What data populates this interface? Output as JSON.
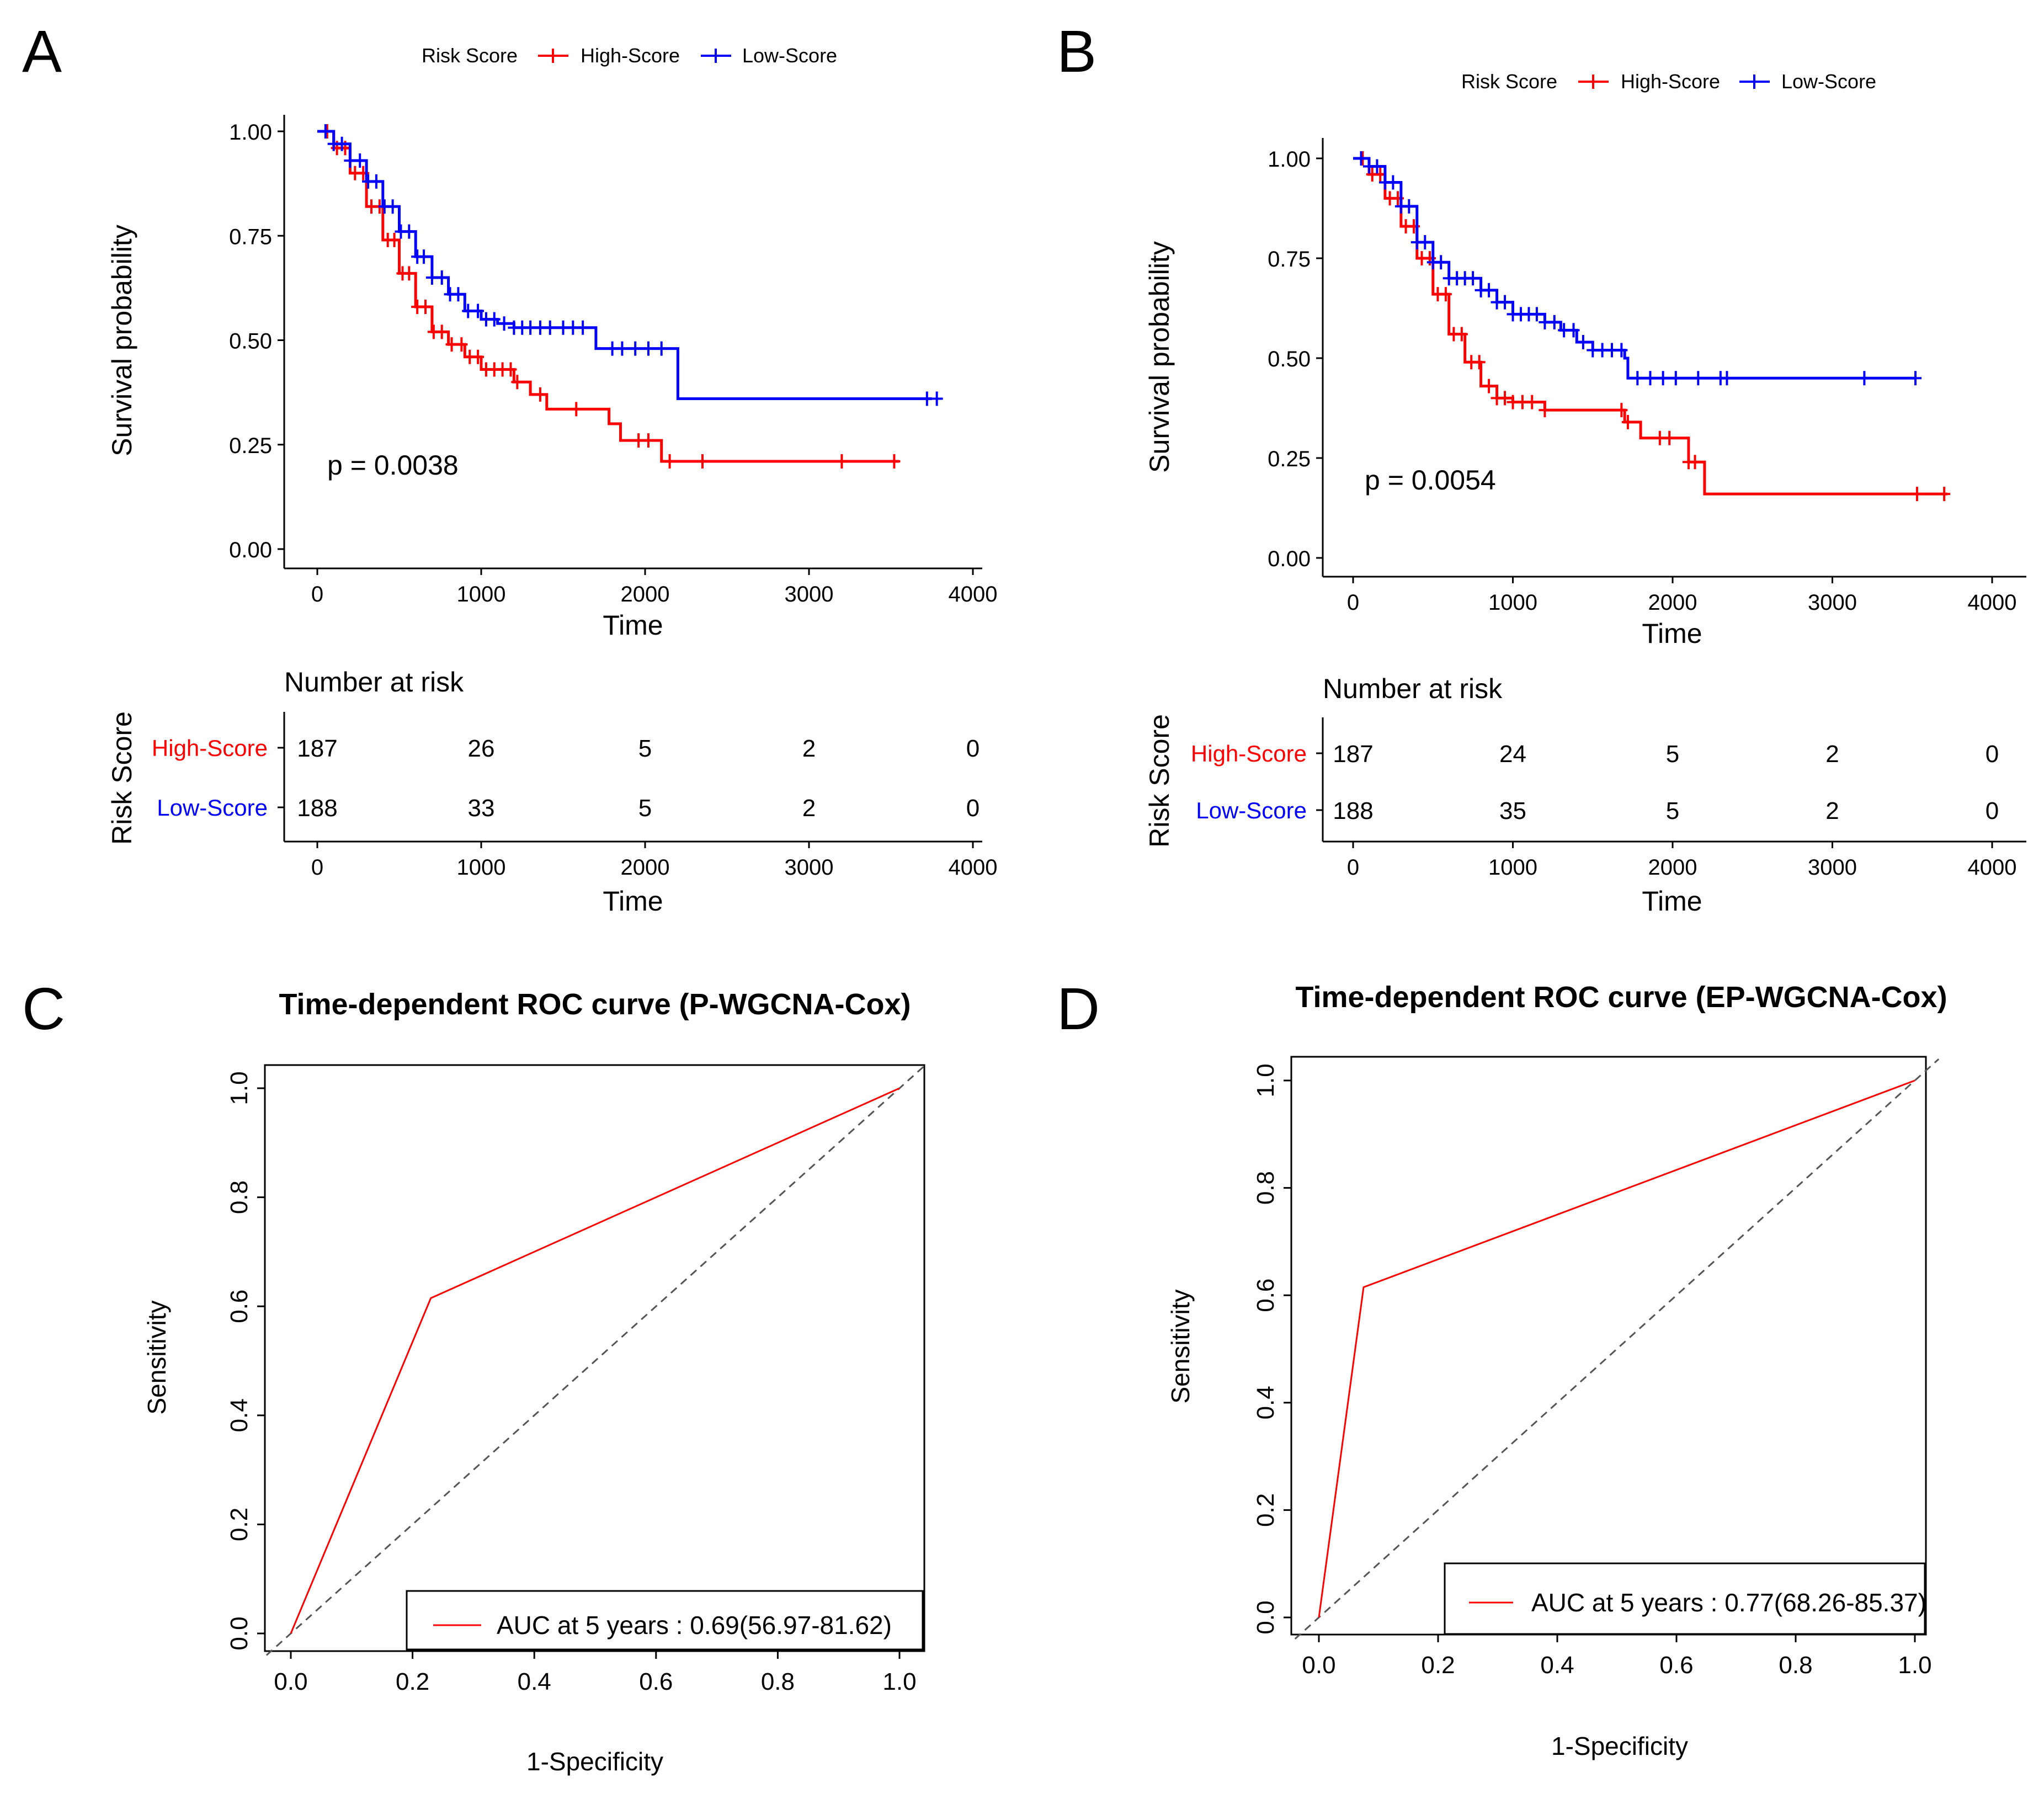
{
  "colors": {
    "high": "#ff0000",
    "low": "#0000ff",
    "roc": "#ff0000",
    "diag": "#555555",
    "axis": "#000000"
  },
  "chart_data": [
    {
      "panel": "A",
      "type": "line",
      "subtype": "kaplan-meier",
      "legend": {
        "title": "Risk Score",
        "entries": [
          "High-Score",
          "Low-Score"
        ],
        "placement": "top"
      },
      "xlabel": "Time",
      "ylabel": "Survival probability",
      "xlim": [
        0,
        4000
      ],
      "ylim": [
        0,
        1
      ],
      "x_ticks": [
        "0",
        "1000",
        "2000",
        "3000",
        "4000"
      ],
      "y_ticks": [
        "0.00",
        "0.25",
        "0.50",
        "0.75",
        "1.00"
      ],
      "pvalue_label": "p = 0.0038",
      "series": [
        {
          "name": "High-Score",
          "color_key": "high",
          "steps": [
            [
              0,
              1.0
            ],
            [
              100,
              0.96
            ],
            [
              200,
              0.9
            ],
            [
              300,
              0.82
            ],
            [
              400,
              0.74
            ],
            [
              500,
              0.66
            ],
            [
              600,
              0.58
            ],
            [
              700,
              0.52
            ],
            [
              800,
              0.49
            ],
            [
              900,
              0.46
            ],
            [
              1000,
              0.43
            ],
            [
              1200,
              0.4
            ],
            [
              1300,
              0.37
            ],
            [
              1400,
              0.335
            ],
            [
              1780,
              0.3
            ],
            [
              1850,
              0.26
            ],
            [
              2100,
              0.21
            ],
            [
              3550,
              0.21
            ]
          ],
          "censor_x": [
            60,
            120,
            170,
            230,
            280,
            330,
            380,
            430,
            470,
            520,
            560,
            610,
            660,
            710,
            760,
            820,
            880,
            930,
            980,
            1030,
            1080,
            1130,
            1180,
            1220,
            1360,
            1580,
            1960,
            2020,
            2150,
            2350,
            3200,
            3520
          ]
        },
        {
          "name": "Low-Score",
          "color_key": "low",
          "steps": [
            [
              0,
              1.0
            ],
            [
              100,
              0.97
            ],
            [
              200,
              0.93
            ],
            [
              300,
              0.88
            ],
            [
              400,
              0.82
            ],
            [
              500,
              0.76
            ],
            [
              600,
              0.7
            ],
            [
              700,
              0.65
            ],
            [
              800,
              0.61
            ],
            [
              900,
              0.57
            ],
            [
              1000,
              0.55
            ],
            [
              1100,
              0.54
            ],
            [
              1200,
              0.53
            ],
            [
              1700,
              0.48
            ],
            [
              2200,
              0.36
            ],
            [
              3750,
              0.36
            ]
          ],
          "censor_x": [
            50,
            100,
            150,
            200,
            260,
            310,
            360,
            410,
            460,
            510,
            560,
            610,
            650,
            700,
            760,
            810,
            860,
            920,
            980,
            1030,
            1080,
            1140,
            1200,
            1250,
            1300,
            1360,
            1420,
            1500,
            1560,
            1620,
            1800,
            1860,
            1940,
            2020,
            2100,
            3720,
            3780
          ]
        }
      ],
      "risk_table": {
        "title": "Number at risk",
        "ylabel": "Risk Score",
        "xlabel": "Time",
        "at": [
          0,
          1000,
          2000,
          3000,
          4000
        ],
        "rows": [
          {
            "label": "High-Score",
            "color_key": "high",
            "values": [
              "187",
              "26",
              "5",
              "2",
              "0"
            ]
          },
          {
            "label": "Low-Score",
            "color_key": "low",
            "values": [
              "188",
              "33",
              "5",
              "2",
              "0"
            ]
          }
        ]
      }
    },
    {
      "panel": "B",
      "type": "line",
      "subtype": "kaplan-meier",
      "legend": {
        "title": "Risk Score",
        "entries": [
          "High-Score",
          "Low-Score"
        ],
        "placement": "top"
      },
      "xlabel": "Time",
      "ylabel": "Survival probability",
      "xlim": [
        0,
        4000
      ],
      "ylim": [
        0,
        1
      ],
      "x_ticks": [
        "0",
        "1000",
        "2000",
        "3000",
        "4000"
      ],
      "y_ticks": [
        "0.00",
        "0.25",
        "0.50",
        "0.75",
        "1.00"
      ],
      "pvalue_label": "p = 0.0054",
      "series": [
        {
          "name": "High-Score",
          "color_key": "high",
          "steps": [
            [
              0,
              1.0
            ],
            [
              100,
              0.96
            ],
            [
              200,
              0.9
            ],
            [
              300,
              0.83
            ],
            [
              400,
              0.75
            ],
            [
              500,
              0.66
            ],
            [
              600,
              0.56
            ],
            [
              700,
              0.49
            ],
            [
              800,
              0.43
            ],
            [
              900,
              0.4
            ],
            [
              1000,
              0.39
            ],
            [
              1200,
              0.37
            ],
            [
              1700,
              0.34
            ],
            [
              1800,
              0.3
            ],
            [
              2100,
              0.24
            ],
            [
              2200,
              0.16
            ],
            [
              3720,
              0.16
            ]
          ],
          "censor_x": [
            60,
            120,
            170,
            230,
            280,
            330,
            380,
            430,
            480,
            530,
            580,
            630,
            680,
            740,
            790,
            850,
            900,
            950,
            1000,
            1060,
            1120,
            1200,
            1680,
            1720,
            1920,
            1980,
            2100,
            2140,
            3530,
            3700
          ]
        },
        {
          "name": "Low-Score",
          "color_key": "low",
          "steps": [
            [
              0,
              1.0
            ],
            [
              100,
              0.98
            ],
            [
              200,
              0.94
            ],
            [
              300,
              0.88
            ],
            [
              400,
              0.79
            ],
            [
              500,
              0.74
            ],
            [
              600,
              0.7
            ],
            [
              800,
              0.67
            ],
            [
              900,
              0.64
            ],
            [
              1000,
              0.61
            ],
            [
              1200,
              0.59
            ],
            [
              1300,
              0.57
            ],
            [
              1400,
              0.54
            ],
            [
              1500,
              0.52
            ],
            [
              1700,
              0.5
            ],
            [
              1720,
              0.45
            ],
            [
              3520,
              0.45
            ]
          ],
          "censor_x": [
            50,
            100,
            150,
            200,
            250,
            300,
            350,
            400,
            450,
            500,
            550,
            600,
            650,
            700,
            750,
            800,
            850,
            900,
            950,
            1000,
            1050,
            1100,
            1150,
            1200,
            1260,
            1320,
            1380,
            1440,
            1500,
            1560,
            1620,
            1680,
            1780,
            1860,
            1940,
            2020,
            2160,
            2300,
            2340,
            3200,
            3520
          ]
        }
      ],
      "risk_table": {
        "title": "Number at risk",
        "ylabel": "Risk Score",
        "xlabel": "Time",
        "at": [
          0,
          1000,
          2000,
          3000,
          4000
        ],
        "rows": [
          {
            "label": "High-Score",
            "color_key": "high",
            "values": [
              "187",
              "24",
              "5",
              "2",
              "0"
            ]
          },
          {
            "label": "Low-Score",
            "color_key": "low",
            "values": [
              "188",
              "35",
              "5",
              "2",
              "0"
            ]
          }
        ]
      }
    },
    {
      "panel": "C",
      "type": "line",
      "subtype": "roc",
      "title": "Time-dependent ROC curve (P-WGCNA-Cox)",
      "xlabel": "1-Specificity",
      "ylabel": "Sensitivity",
      "xlim": [
        0,
        1
      ],
      "ylim": [
        0,
        1
      ],
      "x_ticks": [
        "0.0",
        "0.2",
        "0.4",
        "0.6",
        "0.8",
        "1.0"
      ],
      "y_ticks": [
        "0.0",
        "0.2",
        "0.4",
        "0.6",
        "0.8",
        "1.0"
      ],
      "series": [
        {
          "name": "AUC at 5 years",
          "x": [
            0,
            0.23,
            1
          ],
          "y": [
            0,
            0.615,
            1
          ]
        }
      ],
      "diagonal": true,
      "legend_label": "AUC at 5 years : 0.69(56.97-81.62)"
    },
    {
      "panel": "D",
      "type": "line",
      "subtype": "roc",
      "title": "Time-dependent ROC curve (EP-WGCNA-Cox)",
      "xlabel": "1-Specificity",
      "ylabel": "Sensitivity",
      "xlim": [
        0,
        1
      ],
      "ylim": [
        0,
        1
      ],
      "x_ticks": [
        "0.0",
        "0.2",
        "0.4",
        "0.6",
        "0.8",
        "1.0"
      ],
      "y_ticks": [
        "0.0",
        "0.2",
        "0.4",
        "0.6",
        "0.8",
        "1.0"
      ],
      "series": [
        {
          "name": "AUC at 5 years",
          "x": [
            0,
            0.075,
            1
          ],
          "y": [
            0,
            0.615,
            1
          ]
        }
      ],
      "diagonal": true,
      "legend_label": "AUC at 5 years : 0.77(68.26-85.37)"
    }
  ]
}
